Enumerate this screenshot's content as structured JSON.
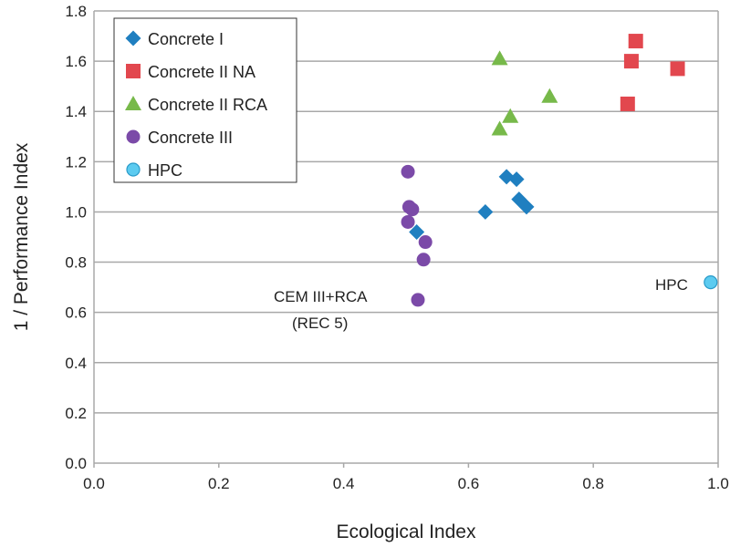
{
  "chart_data": {
    "type": "scatter",
    "xlabel": "Ecological Index",
    "ylabel": "1 / Performance Index",
    "xlim": [
      0,
      1.0
    ],
    "ylim": [
      0,
      1.8
    ],
    "xticks": [
      "0.0",
      "0.2",
      "0.4",
      "0.6",
      "0.8",
      "1.0"
    ],
    "yticks": [
      "0.0",
      "0.2",
      "0.4",
      "0.6",
      "0.8",
      "1.0",
      "1.2",
      "1.4",
      "1.6",
      "1.8"
    ],
    "grid": "horizontal",
    "legend_placement": "top-left",
    "series": [
      {
        "name": "Concrete I",
        "marker": "diamond",
        "color": "#1f7fc0",
        "points": [
          [
            0.627,
            1.0
          ],
          [
            0.661,
            1.14
          ],
          [
            0.677,
            1.13
          ],
          [
            0.681,
            1.05
          ],
          [
            0.693,
            1.02
          ],
          [
            0.517,
            0.92
          ]
        ]
      },
      {
        "name": "Concrete II NA",
        "marker": "square",
        "color": "#e2474e",
        "points": [
          [
            0.868,
            1.68
          ],
          [
            0.861,
            1.6
          ],
          [
            0.935,
            1.57
          ],
          [
            0.855,
            1.43
          ]
        ]
      },
      {
        "name": "Concrete II RCA",
        "marker": "triangle",
        "color": "#77b94a",
        "points": [
          [
            0.65,
            1.61
          ],
          [
            0.73,
            1.46
          ],
          [
            0.667,
            1.38
          ],
          [
            0.65,
            1.33
          ]
        ]
      },
      {
        "name": "Concrete III",
        "marker": "circle",
        "color": "#7b4aa8",
        "points": [
          [
            0.503,
            1.16
          ],
          [
            0.505,
            1.02
          ],
          [
            0.51,
            1.01
          ],
          [
            0.503,
            0.96
          ],
          [
            0.531,
            0.88
          ],
          [
            0.528,
            0.81
          ],
          [
            0.519,
            0.65
          ]
        ]
      },
      {
        "name": "HPC",
        "marker": "circle-outline",
        "color": "#5ccbf0",
        "points": [
          [
            0.988,
            0.72
          ]
        ]
      }
    ],
    "annotations": [
      {
        "text": "CEM III+RCA",
        "x": 0.519,
        "y": 0.65
      },
      {
        "text": "(REC 5)",
        "x": 0.519,
        "y": 0.65
      },
      {
        "text": "HPC",
        "x": 0.988,
        "y": 0.72
      }
    ]
  }
}
